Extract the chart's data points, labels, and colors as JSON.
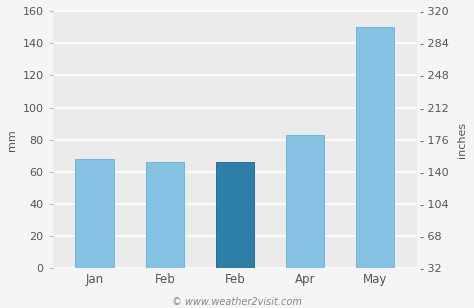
{
  "categories": [
    "Jan",
    "Feb",
    "Feb",
    "Apr",
    "May"
  ],
  "values": [
    68,
    66,
    66,
    83,
    150
  ],
  "bar_colors": [
    "#85c1e2",
    "#85c1e2",
    "#2e7fa8",
    "#85c1e2",
    "#85c1e2"
  ],
  "bar_edgecolors": [
    "#6aadd6",
    "#6aadd6",
    "#1e6080",
    "#6aadd6",
    "#6aadd6"
  ],
  "ylim_left": [
    0,
    160
  ],
  "yticks_left": [
    0,
    20,
    40,
    60,
    80,
    100,
    120,
    140,
    160
  ],
  "ylabel_left": "mm",
  "ylabel_right": "inches",
  "yticks_right_vals": [
    32,
    68,
    104,
    140,
    176,
    212,
    248,
    284,
    320
  ],
  "ylim_right": [
    32,
    320
  ],
  "fig_bg_color": "#f5f5f5",
  "plot_bg_color": "#ebebeb",
  "watermark": "© www.weather2visit.com",
  "grid_color": "#ffffff",
  "bar_width": 0.55,
  "tick_color": "#555555",
  "label_color": "#555555"
}
